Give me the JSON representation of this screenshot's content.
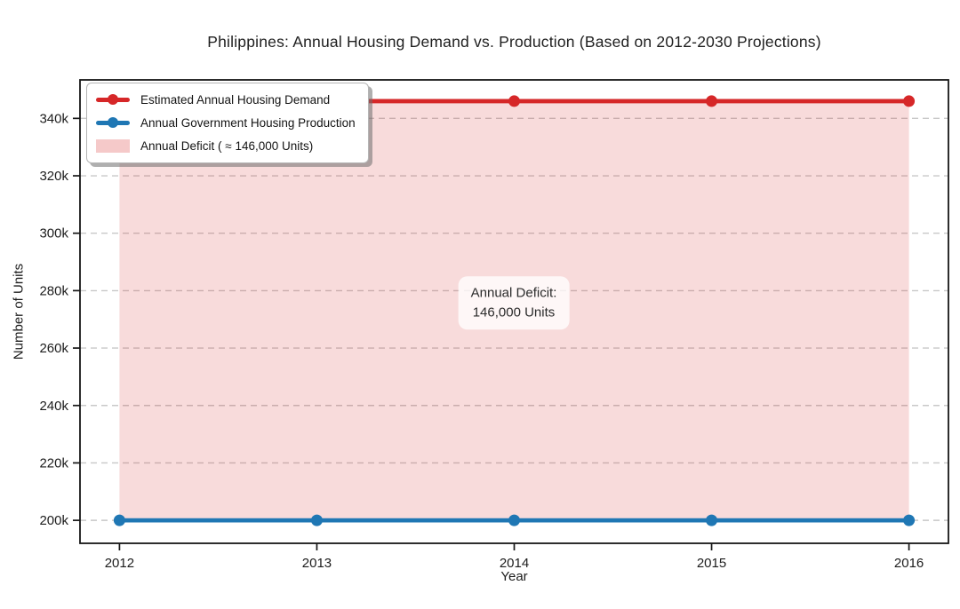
{
  "colors": {
    "demand": "#d62728",
    "production": "#1f77b4",
    "deficit_fill": "#d62728",
    "deficit_fill_opacity": 0.17,
    "legend_patch_opacity": 0.25,
    "grid": "#c8c8c8",
    "spine": "#161616",
    "tick_text": "#1c1c1c"
  },
  "chart_data": {
    "type": "line",
    "title": "Philippines: Annual Housing Demand vs. Production (Based on 2012-2030 Projections)",
    "xlabel": "Year",
    "ylabel": "Number of Units",
    "x": [
      2012,
      2013,
      2014,
      2015,
      2016
    ],
    "series": [
      {
        "name": "Estimated Annual Housing Demand",
        "values": [
          346000,
          346000,
          346000,
          346000,
          346000
        ],
        "color": "#d62728"
      },
      {
        "name": "Annual Government Housing Production",
        "values": [
          200000,
          200000,
          200000,
          200000,
          200000
        ],
        "color": "#1f77b4"
      }
    ],
    "area_between": {
      "upper_series": 0,
      "lower_series": 1,
      "label": "Annual Deficit ( ≈ 146,000 Units)",
      "deficit_units": 146000
    },
    "xlim": [
      2011.8,
      2016.2
    ],
    "ylim": [
      192000,
      353400
    ],
    "xticks": {
      "values": [
        2012,
        2013,
        2014,
        2015,
        2016
      ],
      "labels": [
        "2012",
        "2013",
        "2014",
        "2015",
        "2016"
      ]
    },
    "yticks": {
      "values": [
        200000,
        220000,
        240000,
        260000,
        280000,
        300000,
        320000,
        340000
      ],
      "labels": [
        "200k",
        "220k",
        "240k",
        "260k",
        "280k",
        "300k",
        "320k",
        "340k"
      ]
    },
    "grid": "horizontal-dashed",
    "legend_position": "upper-left",
    "legend": {
      "items": [
        {
          "type": "line",
          "color": "#d62728",
          "label": "Estimated Annual Housing Demand"
        },
        {
          "type": "line",
          "color": "#1f77b4",
          "label": "Annual Government Housing Production"
        },
        {
          "type": "patch",
          "color": "#d62728",
          "label": "Annual Deficit ( ≈ 146,000 Units)"
        }
      ]
    },
    "annotation": {
      "line1": "Annual Deficit:",
      "line2": "146,000 Units"
    }
  }
}
